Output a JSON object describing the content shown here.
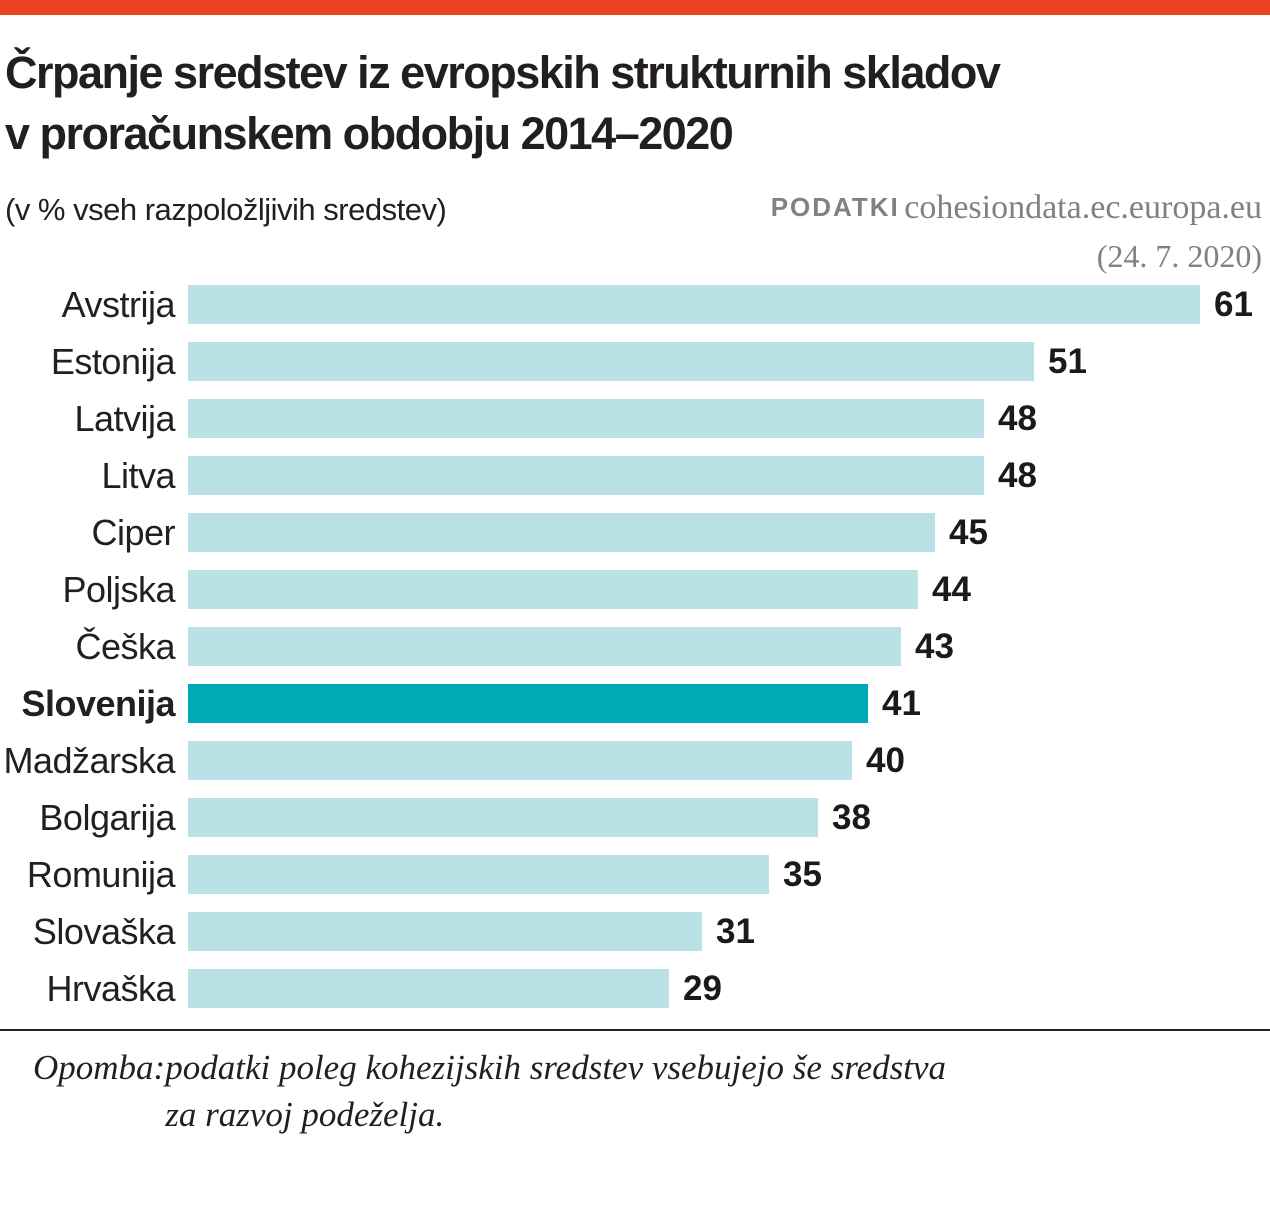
{
  "page": {
    "accent_color": "#ee4323",
    "title_line1": "Črpanje sredstev iz evropskih strukturnih skladov",
    "title_line2": "v proračunskem obdobju 2014–2020",
    "subtitle": "(v % vseh razpoložljivih sredstev)",
    "source_label": "PODATKI",
    "source_value": "cohesiondata.ec.europa.eu",
    "source_date": "(24. 7. 2020)",
    "note_label": "Opomba:",
    "note_line1": "podatki poleg kohezijskih sredstev vsebujejo še sredstva",
    "note_line2": "za razvoj podeželja."
  },
  "chart_data": {
    "type": "bar",
    "orientation": "horizontal",
    "title": "Črpanje sredstev iz evropskih strukturnih skladov v proračunskem obdobju 2014–2020",
    "unit": "% vseh razpoložljivih sredstev",
    "categories": [
      "Avstrija",
      "Estonija",
      "Latvija",
      "Litva",
      "Ciper",
      "Poljska",
      "Češka",
      "Slovenija",
      "Madžarska",
      "Bolgarija",
      "Romunija",
      "Slovaška",
      "Hrvaška"
    ],
    "values": [
      61,
      51,
      48,
      48,
      45,
      44,
      43,
      41,
      40,
      38,
      35,
      31,
      29
    ],
    "highlight_category": "Slovenija",
    "highlight_index": 7,
    "bar_color": "#b9e1e6",
    "highlight_color": "#00a9b6",
    "xlim": [
      0,
      61
    ],
    "grid": false,
    "value_labels": "right-of-bar"
  }
}
